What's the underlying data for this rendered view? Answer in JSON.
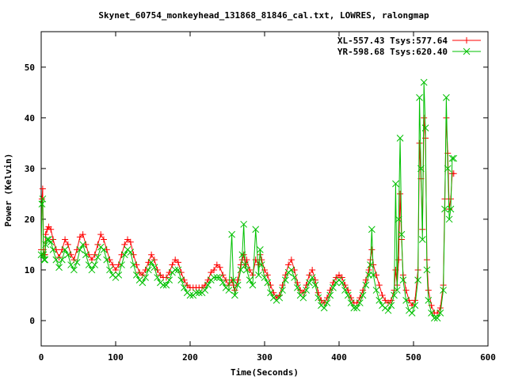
{
  "chart_data": {
    "type": "line",
    "title": "Skynet_60754_monkeyhead_131868_81846_cal.txt, LOWRES, ralongmap",
    "xlabel": "Time(Seconds)",
    "ylabel": "Power (Kelvin)",
    "xlim": [
      0,
      600
    ],
    "ylim": [
      -5,
      57
    ],
    "x_ticks": [
      0,
      100,
      200,
      300,
      400,
      500,
      600
    ],
    "y_ticks": [
      0,
      10,
      20,
      30,
      40,
      50
    ],
    "grid": false,
    "legend_position": "top-right",
    "series": [
      {
        "name": "XL-557.43 Tsys:577.64",
        "color": "#ff0000",
        "marker": "plus",
        "x": [
          0,
          1,
          2,
          3,
          4,
          5,
          6,
          8,
          10,
          13,
          16,
          20,
          24,
          28,
          32,
          36,
          40,
          44,
          48,
          52,
          56,
          60,
          64,
          68,
          72,
          76,
          80,
          84,
          88,
          92,
          96,
          100,
          104,
          108,
          112,
          116,
          120,
          124,
          128,
          132,
          136,
          140,
          144,
          148,
          152,
          156,
          160,
          164,
          168,
          172,
          176,
          180,
          184,
          188,
          192,
          196,
          200,
          204,
          208,
          212,
          216,
          220,
          224,
          228,
          232,
          236,
          240,
          244,
          248,
          252,
          256,
          258,
          260,
          264,
          268,
          270,
          272,
          274,
          276,
          280,
          284,
          288,
          292,
          294,
          296,
          300,
          304,
          308,
          312,
          316,
          320,
          324,
          328,
          332,
          336,
          340,
          344,
          348,
          352,
          356,
          360,
          364,
          368,
          372,
          376,
          380,
          384,
          388,
          392,
          396,
          400,
          404,
          408,
          412,
          416,
          420,
          424,
          428,
          432,
          436,
          440,
          442,
          444,
          446,
          450,
          454,
          458,
          462,
          466,
          470,
          474,
          476,
          478,
          480,
          482,
          484,
          486,
          490,
          494,
          498,
          502,
          506,
          508,
          510,
          512,
          514,
          516,
          518,
          520,
          524,
          528,
          532,
          536,
          540,
          542,
          544,
          546,
          548,
          550,
          552,
          554
        ],
        "values": [
          14,
          24,
          26,
          14,
          13,
          13,
          17,
          18,
          18.5,
          18,
          16,
          14,
          12.5,
          14,
          16,
          15,
          13,
          12,
          14,
          16.5,
          17,
          15,
          13,
          12,
          13,
          15,
          17,
          16,
          14,
          12,
          11,
          10,
          11,
          13,
          15,
          16,
          15.5,
          13,
          11,
          9.5,
          9,
          10,
          11.5,
          13,
          12,
          10,
          9,
          8.5,
          8.5,
          9.5,
          11,
          12,
          11.5,
          9.5,
          8,
          7,
          6.5,
          6.5,
          6.5,
          6.5,
          6.5,
          7,
          8,
          9.5,
          10,
          11,
          10.5,
          9,
          8,
          7,
          8,
          7,
          6,
          8,
          11,
          12,
          13,
          11,
          12,
          10,
          9,
          12,
          11,
          13,
          12,
          10,
          9,
          7,
          5.5,
          4.5,
          5,
          7,
          9,
          11,
          12,
          10,
          7.5,
          6,
          5.5,
          7,
          9,
          10,
          8,
          5.5,
          4,
          3.5,
          4.5,
          6,
          7.5,
          8.5,
          9,
          8.5,
          7,
          6,
          4.5,
          3.5,
          3.5,
          4.5,
          6,
          8,
          10,
          12,
          14,
          11,
          9,
          7,
          5,
          4,
          3.5,
          4,
          6,
          10,
          7,
          12,
          25,
          16,
          9,
          6,
          4,
          3,
          4,
          10,
          35,
          28,
          18,
          40,
          36,
          12,
          6,
          3,
          1.5,
          1.5,
          2.5,
          7,
          24,
          40,
          33,
          22,
          24,
          29,
          29
        ]
      },
      {
        "name": "YR-598.68 Tsys:620.40",
        "color": "#00c000",
        "marker": "cross",
        "x": [
          0,
          1,
          2,
          3,
          4,
          5,
          6,
          8,
          10,
          13,
          16,
          20,
          24,
          28,
          32,
          36,
          40,
          44,
          48,
          52,
          56,
          60,
          64,
          68,
          72,
          76,
          80,
          84,
          88,
          92,
          96,
          100,
          104,
          108,
          112,
          116,
          120,
          124,
          128,
          132,
          136,
          140,
          144,
          148,
          152,
          156,
          160,
          164,
          168,
          172,
          176,
          180,
          184,
          188,
          192,
          196,
          200,
          204,
          208,
          212,
          216,
          220,
          224,
          228,
          232,
          236,
          240,
          244,
          248,
          252,
          256,
          258,
          260,
          264,
          268,
          270,
          272,
          274,
          276,
          280,
          284,
          288,
          292,
          294,
          296,
          300,
          304,
          308,
          312,
          316,
          320,
          324,
          328,
          332,
          336,
          340,
          344,
          348,
          352,
          356,
          360,
          364,
          368,
          372,
          376,
          380,
          384,
          388,
          392,
          396,
          400,
          404,
          408,
          412,
          416,
          420,
          424,
          428,
          432,
          436,
          440,
          442,
          444,
          446,
          450,
          454,
          458,
          462,
          466,
          470,
          474,
          476,
          478,
          480,
          482,
          484,
          486,
          490,
          494,
          498,
          502,
          506,
          508,
          510,
          512,
          514,
          516,
          518,
          520,
          524,
          528,
          532,
          536,
          540,
          542,
          544,
          546,
          548,
          550,
          552,
          554
        ],
        "values": [
          13,
          23,
          24,
          13,
          12,
          12,
          15,
          16,
          16,
          15.5,
          14,
          12,
          10.5,
          12,
          14,
          13,
          11,
          10,
          11.5,
          14,
          15,
          13,
          11,
          10,
          11,
          12.5,
          14.5,
          14,
          12,
          10,
          9,
          8.5,
          9,
          11,
          13,
          14,
          13.5,
          11,
          9,
          8,
          7.5,
          8.5,
          10,
          11.5,
          10.5,
          8.5,
          7.5,
          7,
          7,
          8,
          9.5,
          10,
          10,
          8,
          6.5,
          5.5,
          5,
          5,
          5.5,
          5.5,
          5.5,
          6,
          7,
          8,
          8.5,
          8.5,
          8.5,
          7.5,
          6.5,
          6,
          17,
          8,
          5,
          7,
          10,
          13,
          19,
          11,
          10,
          8,
          7,
          18,
          9,
          14,
          11,
          8.5,
          7.5,
          5.5,
          4.5,
          4,
          4.5,
          6,
          8,
          9.5,
          10,
          8.5,
          6.5,
          5,
          4.5,
          6,
          7.5,
          8.5,
          7,
          4.5,
          3,
          2.5,
          3.5,
          5,
          6.5,
          7.5,
          8,
          7.5,
          6,
          5,
          3.5,
          2.5,
          2.5,
          3.5,
          5,
          7,
          9,
          11,
          18,
          9,
          6,
          4,
          3,
          2.5,
          2,
          3,
          5,
          27,
          6,
          20,
          36,
          17,
          8,
          4,
          2,
          1.5,
          3,
          8,
          44,
          30,
          16,
          47,
          38,
          10,
          4,
          1.5,
          0.5,
          0.5,
          1.5,
          6,
          22,
          44,
          30,
          20,
          22,
          32,
          32
        ]
      }
    ]
  }
}
